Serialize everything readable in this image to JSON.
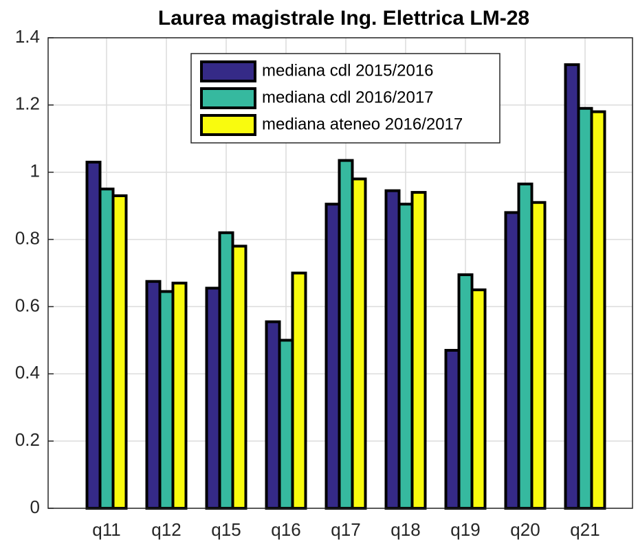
{
  "chart_data": {
    "type": "bar",
    "title": "Laurea magistrale Ing. Elettrica LM-28",
    "categories": [
      "q11",
      "q12",
      "q15",
      "q16",
      "q17",
      "q18",
      "q19",
      "q20",
      "q21"
    ],
    "series": [
      {
        "name": "mediana cdl 2015/2016",
        "color": "#352a87",
        "values": [
          1.03,
          0.675,
          0.655,
          0.555,
          0.905,
          0.945,
          0.47,
          0.88,
          1.32
        ]
      },
      {
        "name": "mediana cdl 2016/2017",
        "color": "#36b99f",
        "values": [
          0.95,
          0.645,
          0.82,
          0.5,
          1.035,
          0.905,
          0.695,
          0.965,
          1.19
        ]
      },
      {
        "name": "mediana ateneo 2016/2017",
        "color": "#f9fb0e",
        "values": [
          0.93,
          0.67,
          0.78,
          0.7,
          0.98,
          0.94,
          0.65,
          0.91,
          1.18
        ]
      }
    ],
    "ylim": [
      0,
      1.4
    ],
    "yticks": [
      0,
      0.2,
      0.4,
      0.6,
      0.8,
      1,
      1.2,
      1.4
    ],
    "grid": true,
    "legend": "top"
  }
}
